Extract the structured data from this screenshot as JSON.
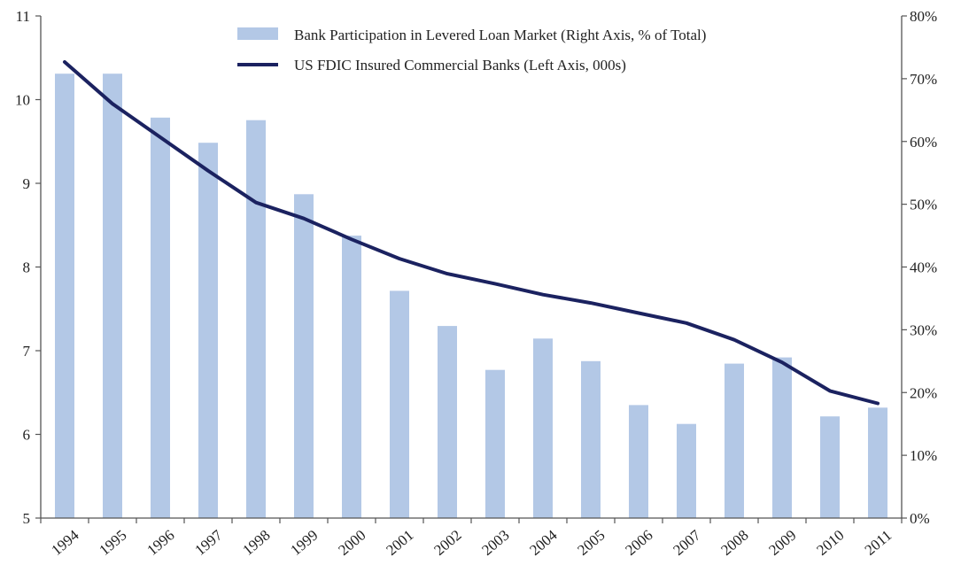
{
  "chart_data": {
    "type": "bar+line",
    "title": "",
    "categories": [
      "1994",
      "1995",
      "1996",
      "1997",
      "1998",
      "1999",
      "2000",
      "2001",
      "2002",
      "2003",
      "2004",
      "2005",
      "2006",
      "2007",
      "2008",
      "2009",
      "2010",
      "2011"
    ],
    "series": [
      {
        "name": "Bank Participation in Levered Loan Market (Right Axis, % of Total)",
        "type": "bar",
        "axis": "right",
        "color": "#b3c8e6",
        "values": [
          70.8,
          70.8,
          63.8,
          59.8,
          63.4,
          51.6,
          45.0,
          36.2,
          30.6,
          23.6,
          28.6,
          25.0,
          18.0,
          15.0,
          24.6,
          25.6,
          16.2,
          17.6
        ]
      },
      {
        "name": "US FDIC Insured Commercial Banks (Left Axis, 000s)",
        "type": "line",
        "axis": "left",
        "color": "#1b2260",
        "values": [
          10.45,
          9.95,
          9.55,
          9.15,
          8.77,
          8.58,
          8.33,
          8.1,
          7.92,
          7.8,
          7.67,
          7.57,
          7.45,
          7.33,
          7.13,
          6.86,
          6.52,
          6.37
        ]
      }
    ],
    "y_left": {
      "min": 5,
      "max": 11,
      "ticks": [
        "5",
        "6",
        "7",
        "8",
        "9",
        "10",
        "11"
      ]
    },
    "y_right": {
      "min": 0,
      "max": 80,
      "ticks": [
        "0%",
        "10%",
        "20%",
        "30%",
        "40%",
        "50%",
        "60%",
        "70%",
        "80%"
      ]
    },
    "grid": false,
    "legend_position": "top-center",
    "xlabel": "",
    "ylabel_left": "",
    "ylabel_right": ""
  }
}
